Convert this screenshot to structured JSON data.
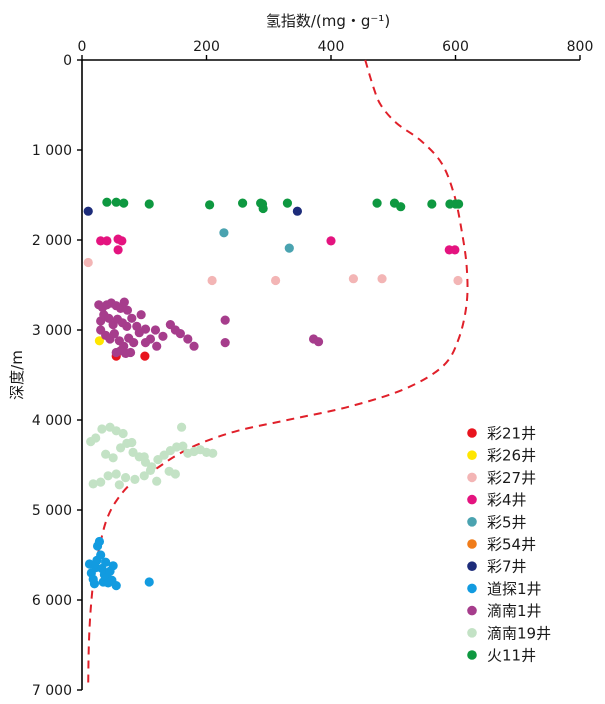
{
  "chart_data": {
    "type": "scatter",
    "title": "",
    "xlabel": "氢指数/(mg・g⁻¹)",
    "ylabel": "深度/m",
    "xlim": [
      0,
      800
    ],
    "ylim": [
      0,
      7000
    ],
    "y_inverted": true,
    "x_axis_position": "top",
    "legend_position": "bottom-right",
    "grid": false,
    "x_ticks": [
      {
        "value": 0,
        "label": "0"
      },
      {
        "value": 200,
        "label": "200"
      },
      {
        "value": 400,
        "label": "400"
      },
      {
        "value": 600,
        "label": "600"
      },
      {
        "value": 800,
        "label": "800"
      }
    ],
    "y_ticks": [
      {
        "value": 0,
        "label": "0"
      },
      {
        "value": 1000,
        "label": "1 000"
      },
      {
        "value": 2000,
        "label": "2 000"
      },
      {
        "value": 3000,
        "label": "3 000"
      },
      {
        "value": 4000,
        "label": "4 000"
      },
      {
        "value": 5000,
        "label": "5 000"
      },
      {
        "value": 6000,
        "label": "6 000"
      },
      {
        "value": 7000,
        "label": "7 000"
      }
    ],
    "series": [
      {
        "name": "彩21井",
        "color": "#e8141e",
        "points": [
          [
            55,
            3290
          ],
          [
            101,
            3290
          ]
        ]
      },
      {
        "name": "彩26井",
        "color": "#ffe600",
        "points": [
          [
            28,
            3120
          ]
        ]
      },
      {
        "name": "彩27井",
        "color": "#f3b5b5",
        "points": [
          [
            10,
            2250
          ],
          [
            209,
            2450
          ],
          [
            311,
            2450
          ],
          [
            436,
            2430
          ],
          [
            482,
            2430
          ],
          [
            604,
            2450
          ]
        ]
      },
      {
        "name": "彩4井",
        "color": "#e4137f",
        "points": [
          [
            30,
            2010
          ],
          [
            40,
            2010
          ],
          [
            58,
            1990
          ],
          [
            64,
            2010
          ],
          [
            58,
            2110
          ],
          [
            400,
            2010
          ],
          [
            590,
            2110
          ],
          [
            599,
            2110
          ]
        ]
      },
      {
        "name": "彩5井",
        "color": "#4aa3b0",
        "points": [
          [
            228,
            1920
          ],
          [
            333,
            2090
          ]
        ]
      },
      {
        "name": "彩54井",
        "color": "#f07c1a",
        "points": []
      },
      {
        "name": "彩7井",
        "color": "#1d2c7a",
        "points": [
          [
            10,
            1680
          ],
          [
            346,
            1680
          ]
        ]
      },
      {
        "name": "道探1井",
        "color": "#129be0",
        "points": [
          [
            12,
            5600
          ],
          [
            15,
            5700
          ],
          [
            18,
            5770
          ],
          [
            22,
            5640
          ],
          [
            24,
            5560
          ],
          [
            25,
            5400
          ],
          [
            28,
            5350
          ],
          [
            30,
            5500
          ],
          [
            32,
            5650
          ],
          [
            34,
            5800
          ],
          [
            36,
            5720
          ],
          [
            38,
            5580
          ],
          [
            40,
            5750
          ],
          [
            42,
            5810
          ],
          [
            45,
            5680
          ],
          [
            48,
            5780
          ],
          [
            50,
            5620
          ],
          [
            55,
            5840
          ],
          [
            20,
            5820
          ],
          [
            108,
            5800
          ]
        ]
      },
      {
        "name": "滴南1井",
        "color": "#a63d8c",
        "points": [
          [
            27,
            2720
          ],
          [
            33,
            2750
          ],
          [
            40,
            2720
          ],
          [
            47,
            2700
          ],
          [
            55,
            2730
          ],
          [
            62,
            2760
          ],
          [
            68,
            2690
          ],
          [
            73,
            2780
          ],
          [
            30,
            2900
          ],
          [
            35,
            2830
          ],
          [
            43,
            2870
          ],
          [
            50,
            2940
          ],
          [
            57,
            2880
          ],
          [
            65,
            2920
          ],
          [
            72,
            2960
          ],
          [
            80,
            2870
          ],
          [
            88,
            2960
          ],
          [
            95,
            2830
          ],
          [
            102,
            2990
          ],
          [
            30,
            3000
          ],
          [
            38,
            3060
          ],
          [
            45,
            3100
          ],
          [
            52,
            3040
          ],
          [
            60,
            3120
          ],
          [
            67,
            3180
          ],
          [
            75,
            3090
          ],
          [
            83,
            3140
          ],
          [
            92,
            3030
          ],
          [
            102,
            3140
          ],
          [
            110,
            3100
          ],
          [
            118,
            3000
          ],
          [
            130,
            3070
          ],
          [
            142,
            2940
          ],
          [
            150,
            3000
          ],
          [
            158,
            3040
          ],
          [
            170,
            3100
          ],
          [
            180,
            3180
          ],
          [
            55,
            3250
          ],
          [
            62,
            3230
          ],
          [
            70,
            3260
          ],
          [
            78,
            3250
          ],
          [
            230,
            2890
          ],
          [
            230,
            3140
          ],
          [
            372,
            3100
          ],
          [
            380,
            3130
          ],
          [
            120,
            3180
          ]
        ]
      },
      {
        "name": "滴南19井",
        "color": "#c3e2c5",
        "points": [
          [
            14,
            4240
          ],
          [
            22,
            4200
          ],
          [
            32,
            4100
          ],
          [
            45,
            4080
          ],
          [
            55,
            4120
          ],
          [
            66,
            4150
          ],
          [
            38,
            4380
          ],
          [
            50,
            4420
          ],
          [
            62,
            4310
          ],
          [
            72,
            4260
          ],
          [
            82,
            4360
          ],
          [
            92,
            4410
          ],
          [
            102,
            4470
          ],
          [
            112,
            4520
          ],
          [
            122,
            4440
          ],
          [
            132,
            4390
          ],
          [
            142,
            4340
          ],
          [
            152,
            4300
          ],
          [
            162,
            4290
          ],
          [
            170,
            4370
          ],
          [
            180,
            4350
          ],
          [
            190,
            4330
          ],
          [
            200,
            4360
          ],
          [
            210,
            4370
          ],
          [
            160,
            4080
          ],
          [
            140,
            4570
          ],
          [
            150,
            4600
          ],
          [
            120,
            4680
          ],
          [
            100,
            4620
          ],
          [
            85,
            4660
          ],
          [
            70,
            4640
          ],
          [
            55,
            4600
          ],
          [
            42,
            4620
          ],
          [
            30,
            4690
          ],
          [
            18,
            4710
          ],
          [
            60,
            4720
          ],
          [
            110,
            4560
          ],
          [
            100,
            4410
          ],
          [
            80,
            4250
          ]
        ]
      },
      {
        "name": "火11井",
        "color": "#0e9840",
        "points": [
          [
            40,
            1580
          ],
          [
            55,
            1580
          ],
          [
            67,
            1590
          ],
          [
            108,
            1600
          ],
          [
            205,
            1610
          ],
          [
            258,
            1590
          ],
          [
            287,
            1590
          ],
          [
            290,
            1600
          ],
          [
            291,
            1650
          ],
          [
            330,
            1590
          ],
          [
            474,
            1590
          ],
          [
            502,
            1590
          ],
          [
            512,
            1630
          ],
          [
            562,
            1600
          ],
          [
            591,
            1600
          ],
          [
            600,
            1600
          ],
          [
            605,
            1600
          ]
        ]
      }
    ],
    "trend_curve": {
      "color": "#e0202a",
      "style": "dashed",
      "points": [
        [
          455,
          0
        ],
        [
          468,
          300
        ],
        [
          480,
          500
        ],
        [
          505,
          700
        ],
        [
          545,
          900
        ],
        [
          578,
          1150
        ],
        [
          598,
          1500
        ],
        [
          610,
          1900
        ],
        [
          618,
          2300
        ],
        [
          618,
          2700
        ],
        [
          605,
          3100
        ],
        [
          580,
          3400
        ],
        [
          520,
          3650
        ],
        [
          430,
          3850
        ],
        [
          330,
          4000
        ],
        [
          250,
          4120
        ],
        [
          190,
          4260
        ],
        [
          150,
          4400
        ],
        [
          115,
          4560
        ],
        [
          80,
          4700
        ],
        [
          55,
          4900
        ],
        [
          40,
          5100
        ],
        [
          30,
          5350
        ],
        [
          20,
          5700
        ],
        [
          14,
          6100
        ],
        [
          11,
          6500
        ],
        [
          10,
          6920
        ]
      ]
    }
  }
}
